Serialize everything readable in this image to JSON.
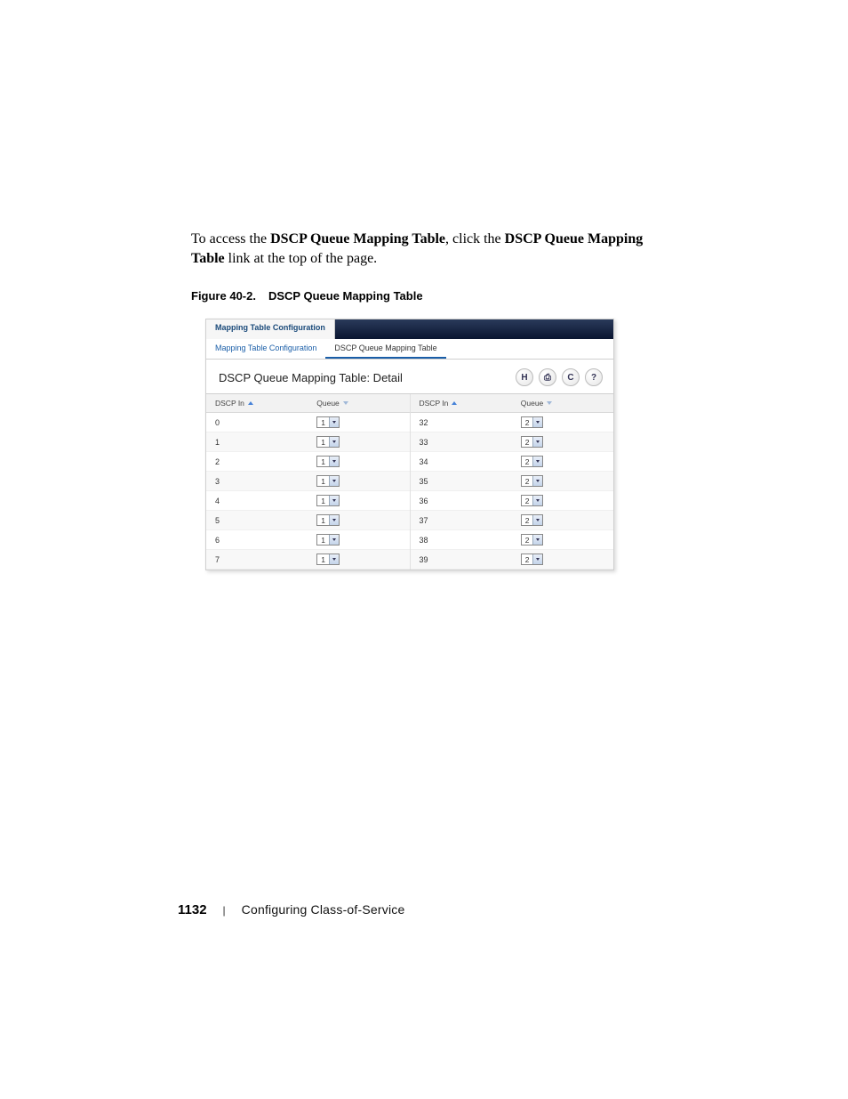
{
  "intro": {
    "prefix": "To access the ",
    "bold1": "DSCP Queue Mapping Table",
    "mid": ", click the ",
    "bold2": "DSCP Queue Mapping Table",
    "suffix": " link at the top of the page."
  },
  "figure": {
    "label": "Figure 40-2.",
    "title": "DSCP Queue Mapping Table"
  },
  "screenshot": {
    "tab_active": "Mapping Table Configuration",
    "subnav": {
      "link1": "Mapping Table Configuration",
      "link2": "DSCP Queue Mapping Table"
    },
    "panel_title": "DSCP Queue Mapping Table: Detail",
    "action_icons": {
      "save": "H",
      "print": "⎙",
      "refresh": "C",
      "help": "?"
    },
    "headers": {
      "dscp": "DSCP In",
      "queue": "Queue"
    },
    "left_rows": [
      {
        "dscp": "0",
        "queue": "1"
      },
      {
        "dscp": "1",
        "queue": "1"
      },
      {
        "dscp": "2",
        "queue": "1"
      },
      {
        "dscp": "3",
        "queue": "1"
      },
      {
        "dscp": "4",
        "queue": "1"
      },
      {
        "dscp": "5",
        "queue": "1"
      },
      {
        "dscp": "6",
        "queue": "1"
      },
      {
        "dscp": "7",
        "queue": "1"
      }
    ],
    "right_rows": [
      {
        "dscp": "32",
        "queue": "2"
      },
      {
        "dscp": "33",
        "queue": "2"
      },
      {
        "dscp": "34",
        "queue": "2"
      },
      {
        "dscp": "35",
        "queue": "2"
      },
      {
        "dscp": "36",
        "queue": "2"
      },
      {
        "dscp": "37",
        "queue": "2"
      },
      {
        "dscp": "38",
        "queue": "2"
      },
      {
        "dscp": "39",
        "queue": "2"
      }
    ]
  },
  "footer": {
    "page_number": "1132",
    "separator": "|",
    "chapter": "Configuring Class-of-Service"
  }
}
